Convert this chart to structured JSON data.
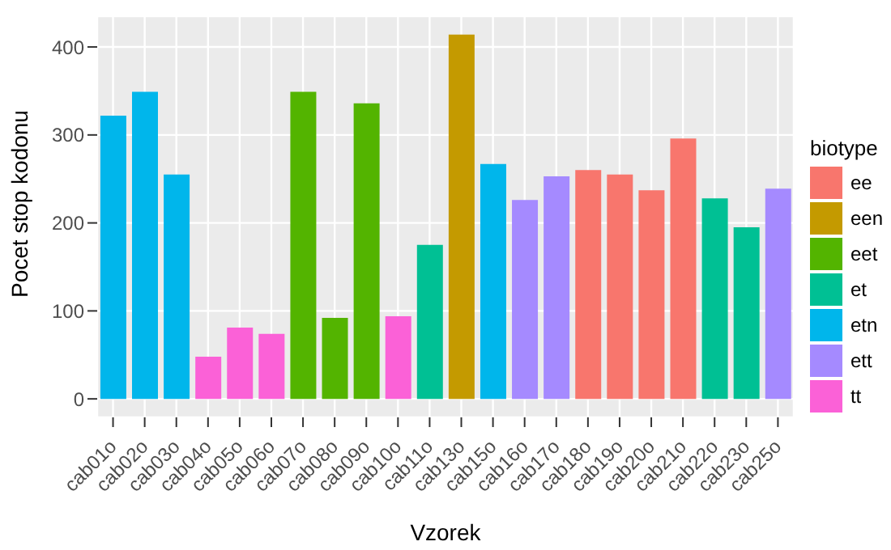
{
  "chart_data": {
    "type": "bar",
    "xlabel": "Vzorek",
    "ylabel": "Pocet stop kodonu",
    "legend_title": "biotype",
    "categories": [
      "cab01o",
      "cab02o",
      "cab03o",
      "cab04o",
      "cab05o",
      "cab06o",
      "cab07o",
      "cab08o",
      "cab09o",
      "cab10o",
      "cab11o",
      "cab13o",
      "cab15o",
      "cab16o",
      "cab17o",
      "cab18o",
      "cab19o",
      "cab20o",
      "cab21o",
      "cab22o",
      "cab23o",
      "cab25o"
    ],
    "series": [
      {
        "name": "ee",
        "color": "#f8766d",
        "values": [
          null,
          null,
          null,
          null,
          null,
          null,
          null,
          null,
          null,
          null,
          null,
          null,
          null,
          null,
          null,
          260,
          255,
          237,
          296,
          null,
          null,
          null
        ]
      },
      {
        "name": "een",
        "color": "#c49a00",
        "values": [
          null,
          null,
          null,
          null,
          null,
          null,
          null,
          null,
          null,
          null,
          null,
          414,
          null,
          null,
          null,
          null,
          null,
          null,
          null,
          null,
          null,
          null
        ]
      },
      {
        "name": "eet",
        "color": "#53b400",
        "values": [
          null,
          null,
          null,
          null,
          null,
          null,
          349,
          92,
          336,
          null,
          null,
          null,
          null,
          null,
          null,
          null,
          null,
          null,
          null,
          null,
          null,
          null
        ]
      },
      {
        "name": "et",
        "color": "#00c094",
        "values": [
          null,
          null,
          null,
          null,
          null,
          null,
          null,
          null,
          null,
          null,
          175,
          null,
          null,
          null,
          null,
          null,
          null,
          null,
          null,
          228,
          195,
          null
        ]
      },
      {
        "name": "etn",
        "color": "#00b6eb",
        "values": [
          322,
          349,
          255,
          null,
          null,
          null,
          null,
          null,
          null,
          null,
          null,
          null,
          267,
          null,
          null,
          null,
          null,
          null,
          null,
          null,
          null,
          null
        ]
      },
      {
        "name": "ett",
        "color": "#a58aff",
        "values": [
          null,
          null,
          null,
          null,
          null,
          null,
          null,
          null,
          null,
          null,
          null,
          null,
          null,
          226,
          253,
          null,
          null,
          null,
          null,
          null,
          null,
          239
        ]
      },
      {
        "name": "tt",
        "color": "#fb61d7",
        "values": [
          null,
          null,
          null,
          48,
          81,
          74,
          null,
          null,
          null,
          94,
          null,
          null,
          null,
          null,
          null,
          null,
          null,
          null,
          null,
          null,
          null,
          null
        ]
      }
    ],
    "stacked": true,
    "ylim": [
      -21,
      435
    ],
    "yticks": [
      0,
      100,
      200,
      300,
      400
    ],
    "grid": true,
    "legend": "right"
  }
}
